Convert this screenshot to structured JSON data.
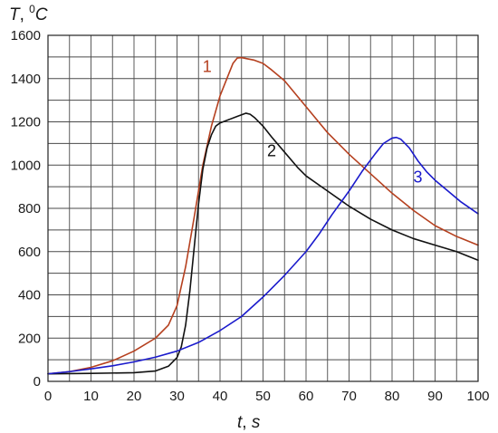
{
  "chart_data": {
    "type": "line",
    "title": "",
    "ylabel_parts": {
      "var": "T",
      "sep": ", ",
      "sup": "0",
      "unit": "C"
    },
    "xlabel_parts": {
      "var": "t",
      "sep": ", ",
      "unit": "s"
    },
    "xlim": [
      0,
      100
    ],
    "ylim": [
      0,
      1600
    ],
    "xticks": [
      0,
      10,
      20,
      30,
      40,
      50,
      60,
      70,
      80,
      90,
      100
    ],
    "yticks": [
      0,
      200,
      400,
      600,
      800,
      1000,
      1200,
      1400,
      1600
    ],
    "grid": true,
    "series": [
      {
        "label": "1",
        "color": "#b5401f",
        "label_pos": [
          37,
          1430
        ],
        "points": [
          [
            0,
            35
          ],
          [
            5,
            45
          ],
          [
            10,
            65
          ],
          [
            15,
            95
          ],
          [
            20,
            140
          ],
          [
            25,
            200
          ],
          [
            28,
            260
          ],
          [
            30,
            350
          ],
          [
            32,
            530
          ],
          [
            34,
            760
          ],
          [
            36,
            1000
          ],
          [
            38,
            1180
          ],
          [
            40,
            1320
          ],
          [
            42,
            1420
          ],
          [
            43,
            1470
          ],
          [
            44,
            1495
          ],
          [
            45,
            1497
          ],
          [
            46,
            1493
          ],
          [
            48,
            1485
          ],
          [
            50,
            1470
          ],
          [
            52,
            1440
          ],
          [
            55,
            1390
          ],
          [
            60,
            1270
          ],
          [
            65,
            1150
          ],
          [
            70,
            1050
          ],
          [
            75,
            960
          ],
          [
            80,
            870
          ],
          [
            85,
            790
          ],
          [
            90,
            720
          ],
          [
            95,
            670
          ],
          [
            100,
            630
          ]
        ]
      },
      {
        "label": "2",
        "color": "#111111",
        "label_pos": [
          52,
          1040
        ],
        "points": [
          [
            0,
            35
          ],
          [
            10,
            37
          ],
          [
            20,
            40
          ],
          [
            25,
            48
          ],
          [
            28,
            70
          ],
          [
            30,
            110
          ],
          [
            31,
            160
          ],
          [
            32,
            260
          ],
          [
            33,
            420
          ],
          [
            34,
            620
          ],
          [
            35,
            820
          ],
          [
            36,
            980
          ],
          [
            37,
            1080
          ],
          [
            38,
            1140
          ],
          [
            39,
            1180
          ],
          [
            40,
            1195
          ],
          [
            42,
            1210
          ],
          [
            44,
            1225
          ],
          [
            46,
            1240
          ],
          [
            47,
            1235
          ],
          [
            48,
            1220
          ],
          [
            50,
            1180
          ],
          [
            52,
            1130
          ],
          [
            55,
            1060
          ],
          [
            58,
            990
          ],
          [
            60,
            950
          ],
          [
            65,
            880
          ],
          [
            70,
            810
          ],
          [
            75,
            750
          ],
          [
            80,
            700
          ],
          [
            85,
            660
          ],
          [
            90,
            630
          ],
          [
            95,
            600
          ],
          [
            100,
            560
          ]
        ]
      },
      {
        "label": "3",
        "color": "#1a1acc",
        "label_pos": [
          86,
          920
        ],
        "points": [
          [
            0,
            35
          ],
          [
            5,
            45
          ],
          [
            10,
            58
          ],
          [
            15,
            72
          ],
          [
            20,
            90
          ],
          [
            25,
            112
          ],
          [
            30,
            140
          ],
          [
            35,
            180
          ],
          [
            40,
            235
          ],
          [
            45,
            300
          ],
          [
            50,
            390
          ],
          [
            55,
            490
          ],
          [
            60,
            600
          ],
          [
            63,
            680
          ],
          [
            66,
            770
          ],
          [
            70,
            880
          ],
          [
            73,
            970
          ],
          [
            76,
            1050
          ],
          [
            78,
            1100
          ],
          [
            80,
            1125
          ],
          [
            81,
            1128
          ],
          [
            82,
            1120
          ],
          [
            84,
            1080
          ],
          [
            86,
            1020
          ],
          [
            88,
            970
          ],
          [
            90,
            930
          ],
          [
            93,
            880
          ],
          [
            96,
            830
          ],
          [
            100,
            775
          ]
        ]
      }
    ]
  }
}
